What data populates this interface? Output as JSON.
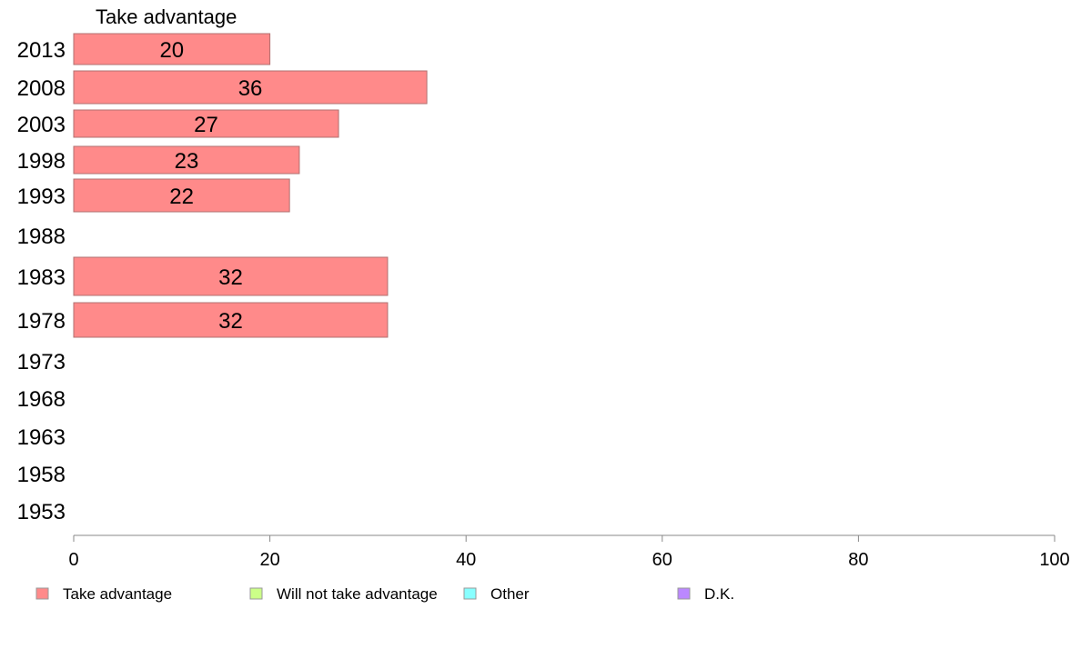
{
  "chart_data": {
    "type": "bar",
    "orientation": "horizontal",
    "series_title": "Take advantage",
    "categories": [
      "2013",
      "2008",
      "2003",
      "1998",
      "1993",
      "1988",
      "1983",
      "1978",
      "1973",
      "1968",
      "1963",
      "1958",
      "1953"
    ],
    "series": [
      {
        "name": "Take advantage",
        "color": "#ff8a8a",
        "values": [
          20,
          36,
          27,
          23,
          22,
          null,
          32,
          32,
          null,
          null,
          null,
          null,
          null
        ]
      }
    ],
    "xlim": [
      0,
      100
    ],
    "xticks": [
      0,
      20,
      40,
      60,
      80,
      100
    ],
    "grid": false,
    "legend": [
      {
        "label": "Take advantage",
        "color": "#ff8a8a"
      },
      {
        "label": "Will not take advantage",
        "color": "#ccff88"
      },
      {
        "label": "Other",
        "color": "#88ffff"
      },
      {
        "label": "D.K.",
        "color": "#bb88ff"
      }
    ],
    "legend_position": "bottom"
  }
}
